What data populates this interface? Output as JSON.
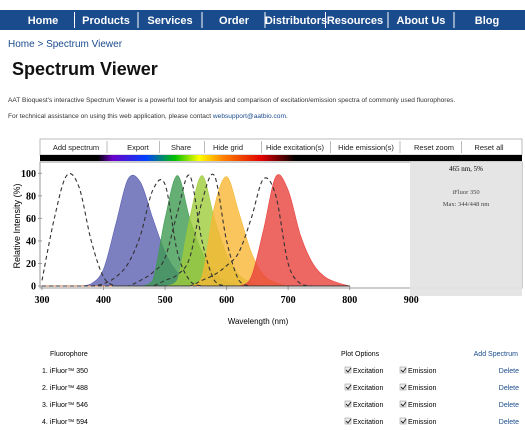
{
  "nav": [
    "Home",
    "Products",
    "Services",
    "Order",
    "Distributors",
    "Resources",
    "About Us",
    "Blog"
  ],
  "breadcrumb": "Home > Spectrum Viewer",
  "title": "Spectrum Viewer",
  "intro": "AAT Bioquest's interactive Spectrum Viewer is a powerful tool for analysis and comparison of excitation/emission spectra of commonly used fluorophores.",
  "contact": {
    "text": "For technical assistance on using this web application, please contact",
    "link": "websupport@aatbio.com",
    "end": "."
  },
  "toolbar": [
    "Add spectrum",
    "Export",
    "Share",
    "Hide grid",
    "Hide excitation(s)",
    "Hide emission(s)",
    "Reset zoom",
    "Reset all"
  ],
  "tooltip": [
    "465 nm, 5%",
    "iFluor 350",
    "Max: 344/448 nm"
  ],
  "chart_data": {
    "type": "area",
    "xlabel": "Wavelength (nm)",
    "ylabel": "Relative Intensity (%)",
    "x": [
      300,
      320,
      340,
      360,
      380,
      400,
      420,
      440,
      460,
      480,
      500,
      520,
      540,
      560,
      580,
      600,
      620,
      640,
      660,
      680,
      700,
      720,
      740,
      760,
      780,
      800
    ],
    "xlim": [
      300,
      1080
    ],
    "xticks": [
      300,
      400,
      500,
      600,
      700,
      800,
      900
    ],
    "ylim": [
      0,
      110
    ],
    "yticks": [
      0,
      20,
      40,
      60,
      80,
      100
    ],
    "grid": false,
    "series": [
      {
        "style": "filled",
        "color": "#5b5fb0",
        "values": [
          0,
          0,
          0,
          0,
          2,
          15,
          55,
          95,
          92,
          60,
          30,
          12,
          4,
          0,
          0,
          0,
          0,
          0,
          0,
          0,
          0,
          0,
          0,
          0,
          0,
          0
        ]
      },
      {
        "style": "filled",
        "color": "#3f9b52",
        "values": [
          0,
          0,
          0,
          0,
          0,
          0,
          0,
          0,
          0,
          5,
          60,
          98,
          60,
          30,
          12,
          4,
          0,
          0,
          0,
          0,
          0,
          0,
          0,
          0,
          0,
          0
        ]
      },
      {
        "style": "filled",
        "color": "#9fcc3b",
        "values": [
          0,
          0,
          0,
          0,
          0,
          0,
          0,
          0,
          0,
          0,
          0,
          5,
          60,
          98,
          60,
          28,
          10,
          3,
          0,
          0,
          0,
          0,
          0,
          0,
          0,
          0
        ]
      },
      {
        "style": "filled",
        "color": "#f7b733",
        "values": [
          0,
          0,
          0,
          0,
          0,
          0,
          0,
          0,
          0,
          0,
          0,
          0,
          0,
          8,
          70,
          97,
          65,
          30,
          10,
          3,
          0,
          0,
          0,
          0,
          0,
          0
        ]
      },
      {
        "style": "filled",
        "color": "#e8413c",
        "values": [
          0,
          0,
          0,
          0,
          0,
          0,
          0,
          0,
          0,
          0,
          0,
          0,
          0,
          0,
          0,
          0,
          0,
          8,
          50,
          97,
          85,
          45,
          20,
          8,
          3,
          0
        ]
      },
      {
        "style": "dashed",
        "color": "#333333",
        "values": [
          5,
          60,
          98,
          88,
          40,
          8,
          0,
          0,
          0,
          0,
          0,
          0,
          0,
          0,
          0,
          0,
          0,
          0,
          0,
          0,
          0,
          0,
          0,
          0,
          0,
          0
        ]
      },
      {
        "style": "dashed",
        "color": "#333333",
        "values": [
          0,
          0,
          0,
          0,
          0,
          2,
          8,
          20,
          45,
          85,
          90,
          30,
          5,
          0,
          0,
          0,
          0,
          0,
          0,
          0,
          0,
          0,
          0,
          0,
          0,
          0
        ]
      },
      {
        "style": "dashed",
        "color": "#333333",
        "values": [
          0,
          0,
          0,
          0,
          0,
          0,
          0,
          0,
          5,
          12,
          25,
          65,
          98,
          40,
          5,
          0,
          0,
          0,
          0,
          0,
          0,
          0,
          0,
          0,
          0,
          0
        ]
      },
      {
        "style": "dashed",
        "color": "#333333",
        "values": [
          0,
          0,
          0,
          0,
          0,
          0,
          0,
          0,
          0,
          0,
          5,
          10,
          25,
          75,
          98,
          40,
          5,
          0,
          0,
          0,
          0,
          0,
          0,
          0,
          0,
          0
        ]
      },
      {
        "style": "dashed",
        "color": "#333333",
        "values": [
          0,
          0,
          0,
          0,
          0,
          0,
          0,
          0,
          0,
          0,
          0,
          0,
          0,
          5,
          10,
          18,
          30,
          60,
          95,
          80,
          20,
          2,
          0,
          0,
          0,
          0
        ]
      }
    ]
  },
  "table": {
    "headers": [
      "Fluorophore",
      "Plot Options",
      "Add Spectrum"
    ],
    "rows": [
      [
        "1. iFluor™ 350",
        "Excitation",
        "Emission",
        "Delete"
      ],
      [
        "2. iFluor™ 488",
        "Excitation",
        "Emission",
        "Delete"
      ],
      [
        "3. iFluor™ 546",
        "Excitation",
        "Emission",
        "Delete"
      ],
      [
        "4. iFluor™ 594",
        "Excitation",
        "Emission",
        "Delete"
      ]
    ]
  }
}
